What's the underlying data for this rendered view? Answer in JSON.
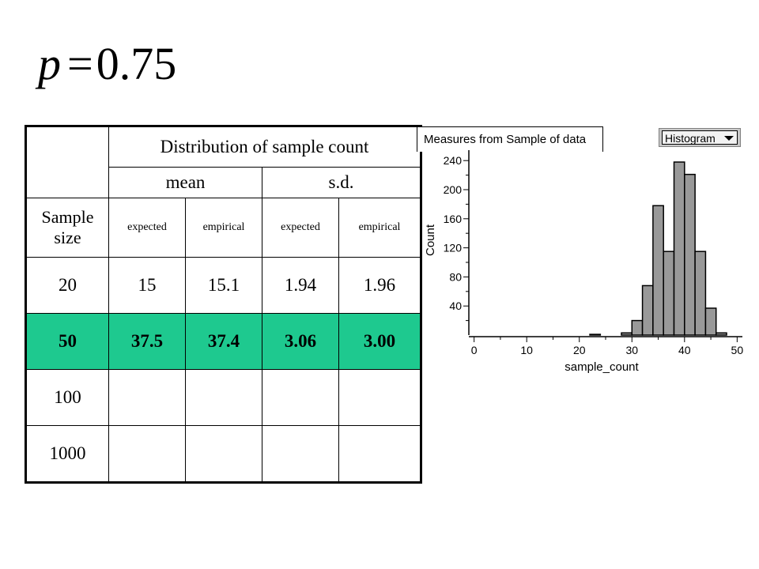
{
  "formula": {
    "variable": "p",
    "equals": "=",
    "value": "0.75"
  },
  "table": {
    "title": "Distribution of sample count",
    "group_headers": [
      "mean",
      "s.d."
    ],
    "row_header_label": "Sample size",
    "sub_headers": [
      "expected",
      "empirical",
      "expected",
      "empirical"
    ],
    "rows": [
      {
        "size": "20",
        "mean_expected": "15",
        "mean_empirical": "15.1",
        "sd_expected": "1.94",
        "sd_empirical": "1.96",
        "highlight": false
      },
      {
        "size": "50",
        "mean_expected": "37.5",
        "mean_empirical": "37.4",
        "sd_expected": "3.06",
        "sd_empirical": "3.00",
        "highlight": true
      },
      {
        "size": "100",
        "mean_expected": "",
        "mean_empirical": "",
        "sd_expected": "",
        "sd_empirical": "",
        "highlight": false
      },
      {
        "size": "1000",
        "mean_expected": "",
        "mean_empirical": "",
        "sd_expected": "",
        "sd_empirical": "",
        "highlight": false
      }
    ],
    "highlight_color": "#1ec98f"
  },
  "graph": {
    "tab_title": "Measures from Sample of data",
    "menu_value": "Histogram",
    "menu_icon": "dropdown-arrow-icon"
  },
  "chart_data": {
    "type": "bar",
    "xlabel": "sample_count",
    "ylabel": "Count",
    "xlim": [
      -1,
      51
    ],
    "ylim": [
      0,
      250
    ],
    "xticks": [
      0,
      10,
      20,
      30,
      40,
      50
    ],
    "yticks": [
      40,
      80,
      120,
      160,
      200,
      240
    ],
    "bin_width": 2,
    "bins": [
      {
        "start": 22,
        "count": 1
      },
      {
        "start": 24,
        "count": 0
      },
      {
        "start": 26,
        "count": 0
      },
      {
        "start": 28,
        "count": 3
      },
      {
        "start": 30,
        "count": 20
      },
      {
        "start": 32,
        "count": 68
      },
      {
        "start": 34,
        "count": 178
      },
      {
        "start": 36,
        "count": 115
      },
      {
        "start": 38,
        "count": 238
      },
      {
        "start": 40,
        "count": 221
      },
      {
        "start": 42,
        "count": 115
      },
      {
        "start": 44,
        "count": 37
      },
      {
        "start": 46,
        "count": 3
      }
    ],
    "bar_color": "#999999"
  }
}
